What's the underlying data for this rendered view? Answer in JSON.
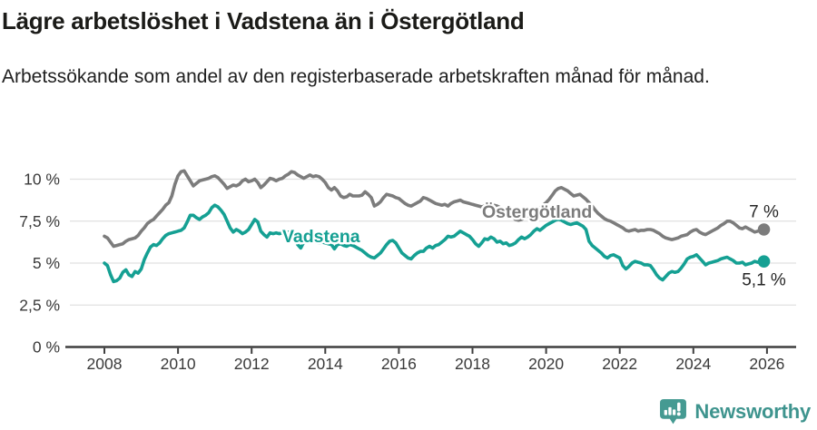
{
  "header": {
    "title": "Lägre arbetslöshet i Vadstena än i Östergötland",
    "subtitle": "Arbetssökande som andel av den registerbaserade arbetskraften månad för månad."
  },
  "colors": {
    "grid": "#e0e0e0",
    "axis": "#3f3f3f",
    "tick_text": "#3a3a3a",
    "title_text": "#1b1b18",
    "ostergotland_line": "#7c7c7c",
    "vadstena_line": "#15a093",
    "brand_teal": "#3e948e",
    "brand_icon_teal": "#459a92"
  },
  "chart_data": {
    "type": "line",
    "title": "Lägre arbetslöshet i Vadstena än i Östergötland",
    "subtitle": "Arbetssökande som andel av den registerbaserade arbetskraften månad för månad.",
    "unit": "%",
    "grid": true,
    "x_start_year": 2008,
    "x_step_months": 1,
    "xlim": [
      2007.1,
      2026.8
    ],
    "ylim": [
      0,
      11
    ],
    "x_ticks": [
      2008,
      2010,
      2012,
      2014,
      2016,
      2018,
      2020,
      2022,
      2024,
      2026
    ],
    "y_ticks": [
      {
        "value": 10,
        "label": "10 %"
      },
      {
        "value": 7.5,
        "label": "7,5 %"
      },
      {
        "value": 5,
        "label": "5 %"
      },
      {
        "value": 2.5,
        "label": "2,5 %"
      },
      {
        "value": 0,
        "label": "0 %"
      }
    ],
    "series": [
      {
        "name": "Östergötland",
        "color": "#7c7c7c",
        "end_label": "7 %",
        "values": [
          6.6,
          6.5,
          6.25,
          6.0,
          6.05,
          6.1,
          6.15,
          6.3,
          6.4,
          6.45,
          6.5,
          6.65,
          6.9,
          7.1,
          7.35,
          7.5,
          7.6,
          7.8,
          8.0,
          8.2,
          8.45,
          8.6,
          9.0,
          9.7,
          10.2,
          10.45,
          10.5,
          10.2,
          9.9,
          9.6,
          9.75,
          9.9,
          9.95,
          10.0,
          10.05,
          10.15,
          10.2,
          10.1,
          9.9,
          9.7,
          9.45,
          9.55,
          9.65,
          9.6,
          9.7,
          9.9,
          10.0,
          9.85,
          9.9,
          10.0,
          9.8,
          9.5,
          9.65,
          9.85,
          10.05,
          10.0,
          9.9,
          10.0,
          10.05,
          10.2,
          10.3,
          10.45,
          10.4,
          10.25,
          10.15,
          10.05,
          10.15,
          10.25,
          10.15,
          10.2,
          10.15,
          10.0,
          9.8,
          9.5,
          9.35,
          9.5,
          9.3,
          9.0,
          8.9,
          8.95,
          9.1,
          9.0,
          9.0,
          9.0,
          9.05,
          9.25,
          9.1,
          8.9,
          8.4,
          8.5,
          8.65,
          8.9,
          9.1,
          9.05,
          9.0,
          8.9,
          8.85,
          8.7,
          8.55,
          8.45,
          8.4,
          8.5,
          8.6,
          8.7,
          8.9,
          8.85,
          8.75,
          8.65,
          8.55,
          8.5,
          8.45,
          8.5,
          8.4,
          8.55,
          8.65,
          8.7,
          8.75,
          8.65,
          8.6,
          8.55,
          8.5,
          8.45,
          8.4,
          8.35,
          8.4,
          8.45,
          8.4,
          8.45,
          8.4,
          8.3,
          8.2,
          8.1,
          7.95,
          7.8,
          7.6,
          7.55,
          7.6,
          7.7,
          7.8,
          7.95,
          8.1,
          8.2,
          8.3,
          8.45,
          8.6,
          8.8,
          9.05,
          9.3,
          9.45,
          9.5,
          9.4,
          9.3,
          9.15,
          9.0,
          9.05,
          9.1,
          8.95,
          8.8,
          8.6,
          8.4,
          8.15,
          7.95,
          7.8,
          7.65,
          7.55,
          7.5,
          7.4,
          7.3,
          7.2,
          7.1,
          6.95,
          6.9,
          6.95,
          7.0,
          6.9,
          6.95,
          6.95,
          7.0,
          7.0,
          6.95,
          6.85,
          6.75,
          6.6,
          6.5,
          6.45,
          6.4,
          6.45,
          6.5,
          6.6,
          6.65,
          6.7,
          6.85,
          6.95,
          7.0,
          6.85,
          6.75,
          6.7,
          6.8,
          6.9,
          7.0,
          7.1,
          7.25,
          7.35,
          7.5,
          7.5,
          7.4,
          7.25,
          7.1,
          7.05,
          7.15,
          7.05,
          6.95,
          6.85,
          6.9,
          6.95,
          7.0
        ]
      },
      {
        "name": "Vadstena",
        "color": "#15a093",
        "end_label": "5,1 %",
        "values": [
          5.0,
          4.85,
          4.3,
          3.9,
          3.95,
          4.1,
          4.45,
          4.6,
          4.3,
          4.2,
          4.5,
          4.4,
          4.65,
          5.2,
          5.6,
          5.95,
          6.1,
          6.05,
          6.2,
          6.45,
          6.65,
          6.75,
          6.8,
          6.85,
          6.9,
          6.95,
          7.1,
          7.45,
          7.85,
          7.85,
          7.7,
          7.6,
          7.75,
          7.85,
          8.0,
          8.3,
          8.45,
          8.35,
          8.15,
          7.9,
          7.5,
          7.1,
          6.85,
          7.0,
          6.9,
          6.75,
          6.85,
          7.0,
          7.3,
          7.6,
          7.45,
          6.9,
          6.7,
          6.55,
          6.8,
          6.75,
          6.8,
          6.75,
          6.8,
          6.75,
          6.85,
          6.75,
          6.5,
          6.1,
          5.9,
          6.25,
          6.5,
          6.45,
          6.35,
          6.25,
          6.2,
          6.25,
          6.2,
          6.15,
          6.1,
          5.85,
          6.1,
          6.15,
          6.05,
          6.0,
          6.1,
          6.05,
          5.95,
          5.85,
          5.75,
          5.6,
          5.45,
          5.35,
          5.3,
          5.45,
          5.6,
          5.85,
          6.1,
          6.3,
          6.35,
          6.2,
          5.9,
          5.6,
          5.45,
          5.3,
          5.25,
          5.45,
          5.6,
          5.7,
          5.7,
          5.9,
          6.0,
          5.9,
          6.05,
          6.1,
          6.25,
          6.4,
          6.6,
          6.55,
          6.6,
          6.75,
          6.9,
          6.8,
          6.7,
          6.6,
          6.4,
          6.15,
          6.0,
          6.2,
          6.45,
          6.4,
          6.55,
          6.45,
          6.25,
          6.3,
          6.15,
          6.2,
          6.05,
          6.1,
          6.2,
          6.4,
          6.55,
          6.45,
          6.55,
          6.7,
          6.9,
          7.05,
          6.95,
          7.1,
          7.25,
          7.35,
          7.45,
          7.55,
          7.6,
          7.55,
          7.45,
          7.35,
          7.3,
          7.35,
          7.4,
          7.3,
          7.2,
          7.0,
          6.3,
          6.05,
          5.9,
          5.75,
          5.6,
          5.4,
          5.3,
          5.45,
          5.5,
          5.4,
          5.3,
          4.85,
          4.65,
          4.8,
          5.0,
          5.1,
          5.05,
          5.0,
          4.9,
          4.9,
          4.85,
          4.6,
          4.3,
          4.1,
          4.0,
          4.2,
          4.4,
          4.5,
          4.45,
          4.5,
          4.7,
          4.95,
          5.25,
          5.35,
          5.4,
          5.5,
          5.3,
          5.1,
          4.9,
          5.0,
          5.05,
          5.1,
          5.15,
          5.25,
          5.3,
          5.35,
          5.25,
          5.15,
          5.0,
          5.0,
          5.05,
          4.9,
          4.95,
          5.0,
          5.1,
          5.05,
          5.05,
          5.1
        ]
      }
    ],
    "legend_position": "inline-labels-on-lines"
  },
  "footer": {
    "brand": "Newsworthy"
  }
}
